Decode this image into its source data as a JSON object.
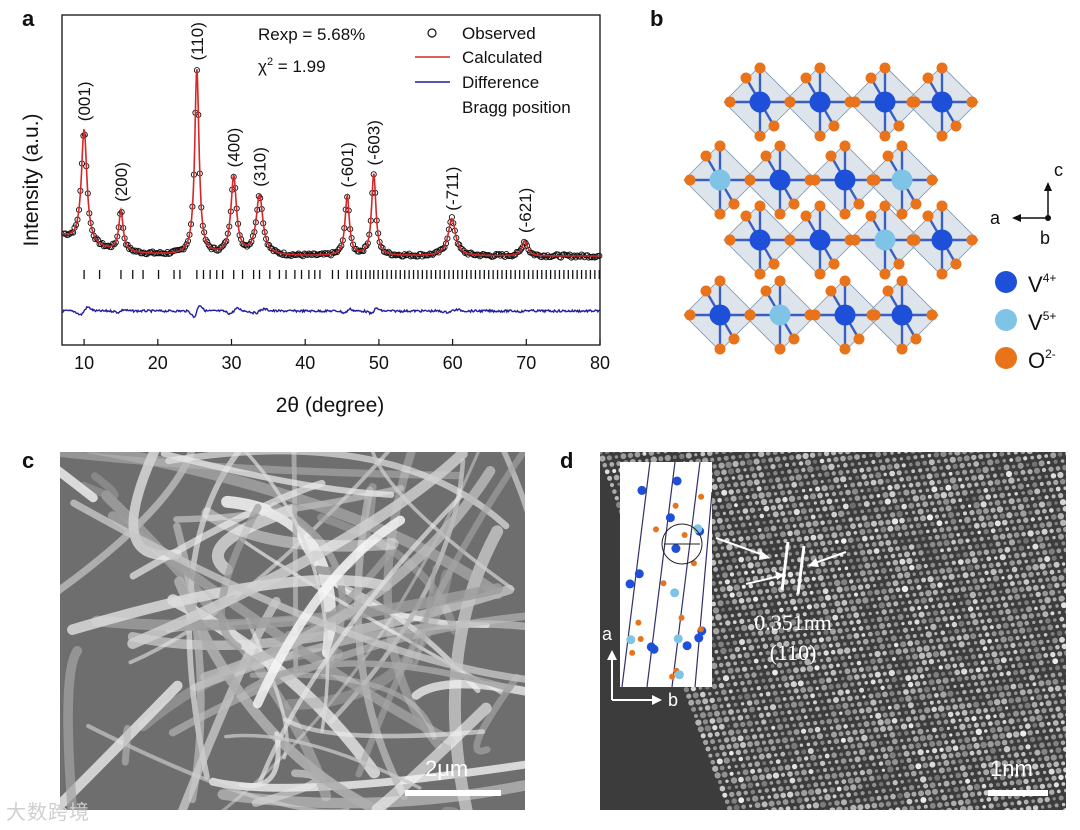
{
  "panels": {
    "a": {
      "letter": "a"
    },
    "b": {
      "letter": "b"
    },
    "c": {
      "letter": "c",
      "scale_bar_label": "2μm"
    },
    "d": {
      "letter": "d",
      "scale_bar_label": "1nm",
      "d_spacing_label": "0.351nm",
      "plane_label": "(110)",
      "inset_axis_a": "a",
      "inset_axis_b": "b"
    }
  },
  "chart_data": {
    "type": "line",
    "xlabel": "2θ (degree)",
    "ylabel": "Intensity (a.u.)",
    "xlim": [
      7,
      80
    ],
    "xticks": [
      10,
      20,
      30,
      40,
      50,
      60,
      70,
      80
    ],
    "annotations": {
      "rexp": "Rexp = 5.68%",
      "chi_prefix": "χ",
      "chi_sup": "2",
      "chi_value": " = 1.99"
    },
    "legend": {
      "placement": "top-right",
      "entries": [
        {
          "label": "Observed",
          "color": "#111111",
          "marker": "circle"
        },
        {
          "label": "Calculated",
          "color": "#d62728",
          "marker": "line"
        },
        {
          "label": "Difference",
          "color": "#1f1fa0",
          "marker": "line"
        },
        {
          "label": "Bragg position",
          "color": "#111111",
          "marker": "none"
        }
      ]
    },
    "peaks": [
      {
        "pos": 10.0,
        "height": 0.62,
        "width": 0.45,
        "label": "(001)"
      },
      {
        "pos": 15.0,
        "height": 0.22,
        "width": 0.35,
        "label": "(200)"
      },
      {
        "pos": 25.3,
        "height": 1.0,
        "width": 0.35,
        "label": "(110)"
      },
      {
        "pos": 30.3,
        "height": 0.42,
        "width": 0.45,
        "label": "(400)"
      },
      {
        "pos": 33.8,
        "height": 0.32,
        "width": 0.55,
        "label": "(310)"
      },
      {
        "pos": 45.7,
        "height": 0.32,
        "width": 0.35,
        "label": "(-601)"
      },
      {
        "pos": 49.3,
        "height": 0.44,
        "width": 0.35,
        "label": "(-603)"
      },
      {
        "pos": 59.9,
        "height": 0.2,
        "width": 0.6,
        "label": "(-711)"
      },
      {
        "pos": 69.8,
        "height": 0.08,
        "width": 0.45,
        "label": "(-621)"
      }
    ],
    "bragg_positions": [
      10.0,
      12.1,
      15.0,
      16.6,
      18.0,
      20.1,
      22.2,
      23.0,
      25.3,
      26.2,
      27.1,
      28.0,
      28.8,
      30.3,
      31.5,
      33.0,
      33.8,
      35.2,
      36.5,
      37.4,
      38.6,
      39.5,
      40.5,
      41.3,
      42.0,
      43.7,
      44.5,
      45.7,
      46.3,
      47.0,
      47.6,
      48.2,
      48.8,
      49.3,
      49.9,
      50.5,
      51.1,
      51.7,
      52.3,
      52.9,
      53.5,
      54.1,
      54.7,
      55.3,
      55.9,
      56.5,
      57.1,
      57.7,
      58.3,
      58.9,
      59.5,
      60.1,
      60.7,
      61.3,
      61.9,
      62.5,
      63.1,
      63.7,
      64.3,
      64.9,
      65.5,
      66.1,
      66.7,
      67.3,
      67.9,
      68.5,
      69.1,
      69.7,
      70.3,
      70.9,
      71.5,
      72.1,
      72.7,
      73.3,
      73.9,
      74.5,
      75.1,
      75.7,
      76.3,
      76.9,
      77.5,
      78.1,
      78.7,
      79.3,
      79.9
    ]
  },
  "structure": {
    "axes": {
      "c": "c",
      "a": "a",
      "b": "b"
    },
    "legend": [
      {
        "ion": "V",
        "charge": "4+",
        "color": "#1e4fd8"
      },
      {
        "ion": "V",
        "charge": "5+",
        "color": "#7fc3e6"
      },
      {
        "ion": "O",
        "charge": "2-",
        "color": "#e8731a"
      }
    ]
  },
  "watermark": "大数跨境"
}
